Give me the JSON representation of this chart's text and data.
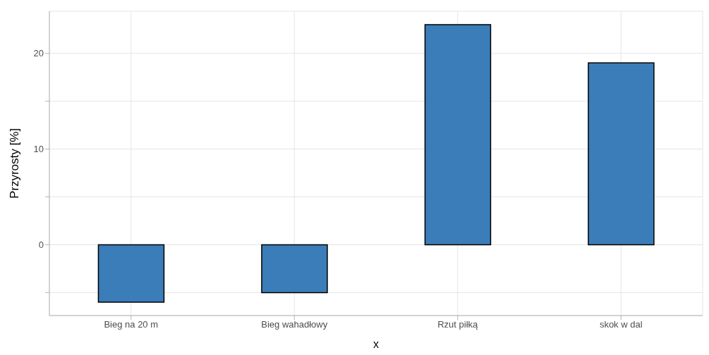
{
  "chart_data": {
    "type": "bar",
    "xlabel": "x",
    "ylabel": "Przyrosty [%]",
    "categories": [
      "Bieg na 20 m",
      "Bieg wahadłowy",
      "Rzut piłką",
      "skok w dal"
    ],
    "values": [
      -6,
      -5,
      23,
      19
    ],
    "color": "#3a7db8",
    "ylim": [
      -7.4,
      24.4
    ],
    "yticks": [
      {
        "value": -5,
        "label": null
      },
      0,
      {
        "value": 5,
        "label": null
      },
      10,
      {
        "value": 15,
        "label": null
      },
      20
    ],
    "grid": true
  }
}
